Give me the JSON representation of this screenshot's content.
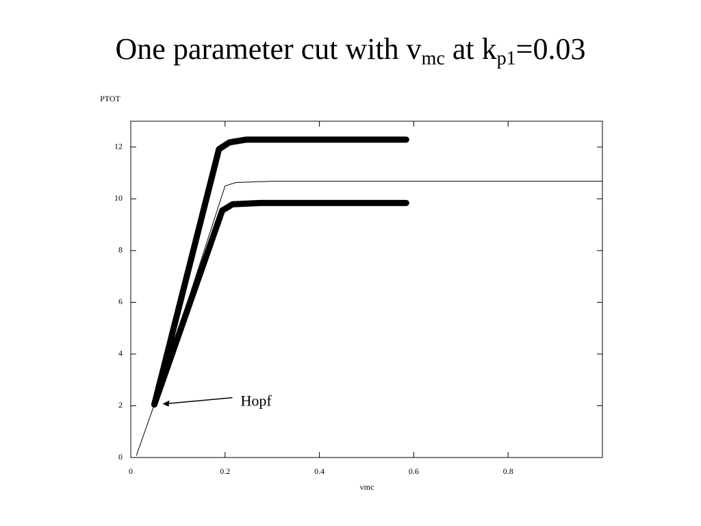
{
  "chart_data": {
    "type": "line",
    "title": [
      "One parameter cut with v",
      "mc",
      " at k",
      "p1",
      "=0.03"
    ],
    "x_label": "vmc",
    "y_label": "PTOT",
    "xlim": [
      0,
      1
    ],
    "ylim": [
      0,
      13
    ],
    "xticks": [
      0,
      0.2,
      0.4,
      0.6,
      0.8
    ],
    "yticks": [
      0,
      2,
      4,
      6,
      8,
      10,
      12
    ],
    "series": [
      {
        "color": "#000000",
        "width": 1,
        "x": [
          0.012,
          0.05,
          0.2,
          0.223,
          0.3,
          1.0
        ],
        "values": [
          0.08,
          2.05,
          10.5,
          10.63,
          10.68,
          10.68
        ]
      },
      {
        "color": "#000000",
        "width": 9,
        "x": [
          0.05,
          0.187,
          0.209,
          0.245,
          0.584
        ],
        "values": [
          2.05,
          11.92,
          12.18,
          12.29,
          12.29
        ]
      },
      {
        "color": "#000000",
        "width": 9,
        "x": [
          0.05,
          0.194,
          0.216,
          0.274,
          0.584
        ],
        "values": [
          2.05,
          9.55,
          9.79,
          9.84,
          9.84
        ]
      }
    ],
    "annotation": {
      "text": "Hopf",
      "x": 0.05,
      "y": 2.05
    }
  }
}
